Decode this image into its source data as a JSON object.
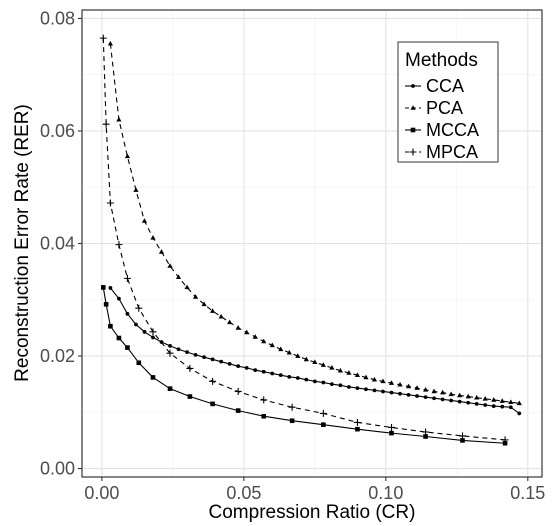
{
  "chart_data": {
    "type": "line",
    "xlabel": "Compression Ratio (CR)",
    "ylabel": "Reconstruction Error Rate (RER)",
    "xlim": [
      -0.007,
      0.155
    ],
    "ylim": [
      -0.0015,
      0.0815
    ],
    "xticks": [
      0.0,
      0.05,
      0.1,
      0.15
    ],
    "xtick_labels": [
      "0.00",
      "0.05",
      "0.10",
      "0.15"
    ],
    "yticks": [
      0.0,
      0.02,
      0.04,
      0.06,
      0.08
    ],
    "ytick_labels": [
      "0.00",
      "0.02",
      "0.04",
      "0.06",
      "0.08"
    ],
    "grid": true,
    "legend": {
      "title": "Methods",
      "position": "top-right"
    },
    "series": [
      {
        "name": "CCA",
        "linestyle": "solid",
        "marker": "dot",
        "x": [
          0.003,
          0.006,
          0.009,
          0.012,
          0.015,
          0.018,
          0.021,
          0.024,
          0.027,
          0.03,
          0.033,
          0.036,
          0.039,
          0.042,
          0.045,
          0.048,
          0.051,
          0.054,
          0.057,
          0.06,
          0.063,
          0.066,
          0.069,
          0.072,
          0.075,
          0.078,
          0.081,
          0.084,
          0.087,
          0.09,
          0.093,
          0.096,
          0.099,
          0.102,
          0.105,
          0.108,
          0.111,
          0.114,
          0.117,
          0.12,
          0.123,
          0.126,
          0.129,
          0.132,
          0.135,
          0.138,
          0.141,
          0.144,
          0.147
        ],
        "y": [
          0.0321,
          0.0302,
          0.0275,
          0.0256,
          0.0243,
          0.0233,
          0.0225,
          0.0218,
          0.0212,
          0.0207,
          0.0202,
          0.0198,
          0.0194,
          0.019,
          0.0186,
          0.0182,
          0.0179,
          0.0175,
          0.0172,
          0.0169,
          0.0166,
          0.0163,
          0.0161,
          0.0158,
          0.0155,
          0.0153,
          0.015,
          0.0148,
          0.0145,
          0.0143,
          0.0141,
          0.0139,
          0.0137,
          0.0135,
          0.0133,
          0.0131,
          0.0129,
          0.0127,
          0.0125,
          0.0123,
          0.0121,
          0.0119,
          0.0117,
          0.0115,
          0.0113,
          0.0111,
          0.011,
          0.0109,
          0.0098
        ]
      },
      {
        "name": "PCA",
        "linestyle": "dashed",
        "marker": "triangle",
        "x": [
          0.003,
          0.006,
          0.009,
          0.012,
          0.015,
          0.018,
          0.021,
          0.024,
          0.027,
          0.03,
          0.033,
          0.036,
          0.039,
          0.042,
          0.045,
          0.048,
          0.051,
          0.054,
          0.057,
          0.06,
          0.063,
          0.066,
          0.069,
          0.072,
          0.075,
          0.078,
          0.081,
          0.084,
          0.087,
          0.09,
          0.093,
          0.096,
          0.099,
          0.102,
          0.105,
          0.108,
          0.111,
          0.114,
          0.117,
          0.12,
          0.123,
          0.126,
          0.129,
          0.132,
          0.135,
          0.138,
          0.141,
          0.144,
          0.147
        ],
        "y": [
          0.0755,
          0.062,
          0.0555,
          0.0495,
          0.044,
          0.041,
          0.0385,
          0.036,
          0.034,
          0.0322,
          0.0305,
          0.0292,
          0.028,
          0.027,
          0.026,
          0.025,
          0.0242,
          0.0234,
          0.0226,
          0.0219,
          0.0212,
          0.0206,
          0.02,
          0.0194,
          0.0189,
          0.0184,
          0.0179,
          0.0174,
          0.017,
          0.0166,
          0.0162,
          0.0158,
          0.0155,
          0.0152,
          0.0149,
          0.0146,
          0.0143,
          0.014,
          0.0137,
          0.0135,
          0.0132,
          0.013,
          0.0128,
          0.0126,
          0.0124,
          0.0122,
          0.012,
          0.0118,
          0.0116
        ]
      },
      {
        "name": "MCCA",
        "linestyle": "solid",
        "marker": "square",
        "x": [
          0.0005,
          0.0015,
          0.003,
          0.006,
          0.009,
          0.013,
          0.018,
          0.024,
          0.031,
          0.039,
          0.048,
          0.057,
          0.067,
          0.078,
          0.09,
          0.102,
          0.114,
          0.127,
          0.142
        ],
        "y": [
          0.0322,
          0.0292,
          0.0253,
          0.0232,
          0.0215,
          0.0188,
          0.0162,
          0.0142,
          0.0128,
          0.0115,
          0.0103,
          0.0093,
          0.0085,
          0.0078,
          0.007,
          0.0063,
          0.0057,
          0.005,
          0.0045
        ]
      },
      {
        "name": "MPCA",
        "linestyle": "dashed",
        "marker": "plus",
        "x": [
          0.0005,
          0.0015,
          0.003,
          0.006,
          0.009,
          0.013,
          0.018,
          0.024,
          0.031,
          0.039,
          0.048,
          0.057,
          0.067,
          0.078,
          0.09,
          0.102,
          0.114,
          0.127,
          0.142
        ],
        "y": [
          0.0765,
          0.0612,
          0.0472,
          0.0398,
          0.0338,
          0.0285,
          0.0243,
          0.0205,
          0.0178,
          0.0155,
          0.0137,
          0.0122,
          0.0109,
          0.0098,
          0.0082,
          0.0073,
          0.0065,
          0.0058,
          0.0051
        ]
      }
    ]
  }
}
